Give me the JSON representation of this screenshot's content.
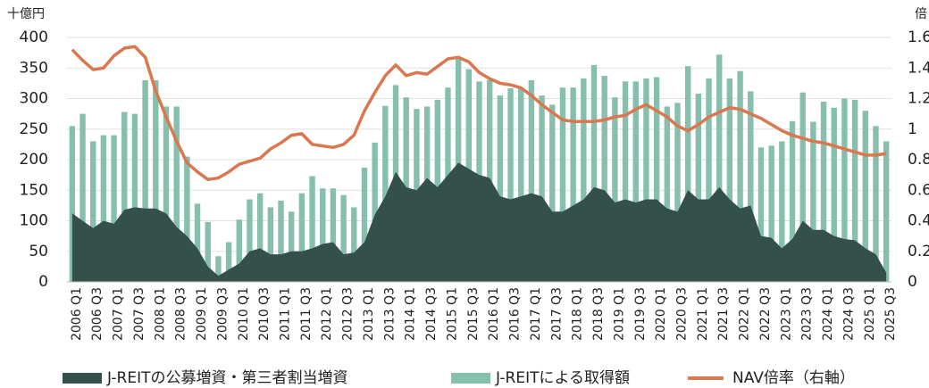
{
  "chart_data": {
    "type": "combo",
    "y_unit": "十億円",
    "y2_unit": "倍",
    "categories": [
      "2006 Q1",
      null,
      "2006 Q3",
      null,
      "2007 Q1",
      null,
      "2007 Q3",
      null,
      "2008 Q1",
      null,
      "2008 Q3",
      null,
      "2009 Q1",
      null,
      "2009 Q3",
      null,
      "2010 Q1",
      null,
      "2010 Q3",
      null,
      "2011 Q1",
      null,
      "2011 Q3",
      null,
      "2012 Q1",
      null,
      "2012 Q3",
      null,
      "2013 Q1",
      null,
      "2013 Q3",
      null,
      "2014 Q1",
      null,
      "2014 Q3",
      null,
      "2015 Q1",
      null,
      "2015 Q3",
      null,
      "2016 Q1",
      null,
      "2016 Q3",
      null,
      "2017 Q1",
      null,
      "2017 Q3",
      null,
      "2018 Q1",
      null,
      "2018 Q3",
      null,
      "2019 Q1",
      null,
      "2019 Q3",
      null,
      "2020 Q1",
      null,
      "2020 Q3",
      null,
      "2021 Q1",
      null,
      "2021 Q3",
      null,
      "2022 Q1",
      null,
      "2022 Q3",
      null,
      "2023 Q1",
      null,
      "2023 Q3",
      null,
      "2024 Q1",
      null,
      "2024 Q3",
      null,
      "2025 Q1",
      null,
      "2025 Q3"
    ],
    "series": [
      {
        "name": "J-REITによる取得額",
        "type": "bar",
        "color": "#86bfae",
        "values": [
          255,
          275,
          230,
          240,
          240,
          278,
          275,
          330,
          330,
          287,
          287,
          205,
          128,
          98,
          42,
          65,
          102,
          135,
          145,
          122,
          133,
          115,
          145,
          173,
          153,
          153,
          142,
          122,
          187,
          228,
          288,
          322,
          302,
          283,
          287,
          298,
          318,
          365,
          348,
          328,
          330,
          305,
          317,
          318,
          330,
          305,
          290,
          318,
          318,
          333,
          355,
          337,
          302,
          328,
          328,
          333,
          335,
          287,
          293,
          353,
          308,
          333,
          372,
          333,
          345,
          312,
          220,
          223,
          230,
          263,
          310,
          262,
          295,
          285,
          300,
          298,
          280,
          255,
          230
        ]
      },
      {
        "name": "J-REITの公募増資・第三者割当増資",
        "type": "area",
        "color": "#34504b",
        "values": [
          112,
          100,
          88,
          100,
          95,
          118,
          122,
          120,
          120,
          112,
          90,
          75,
          55,
          25,
          10,
          20,
          30,
          50,
          55,
          45,
          45,
          50,
          50,
          55,
          62,
          65,
          45,
          48,
          65,
          110,
          140,
          180,
          155,
          150,
          170,
          155,
          175,
          195,
          185,
          175,
          170,
          140,
          135,
          140,
          145,
          140,
          115,
          115,
          125,
          135,
          155,
          150,
          130,
          135,
          130,
          135,
          135,
          120,
          115,
          150,
          135,
          135,
          155,
          135,
          120,
          125,
          75,
          72,
          55,
          70,
          100,
          85,
          85,
          75,
          70,
          68,
          55,
          45,
          15
        ]
      },
      {
        "name": "NAV倍率（右軸）",
        "type": "line",
        "axis": "y2",
        "color": "#d9774f",
        "values": [
          1.52,
          1.45,
          1.39,
          1.4,
          1.48,
          1.53,
          1.54,
          1.47,
          1.25,
          1.08,
          0.92,
          0.78,
          0.72,
          0.67,
          0.68,
          0.72,
          0.77,
          0.79,
          0.81,
          0.87,
          0.91,
          0.96,
          0.97,
          0.9,
          0.89,
          0.88,
          0.9,
          0.96,
          1.12,
          1.24,
          1.35,
          1.42,
          1.35,
          1.37,
          1.36,
          1.41,
          1.46,
          1.47,
          1.44,
          1.37,
          1.33,
          1.3,
          1.29,
          1.27,
          1.22,
          1.16,
          1.11,
          1.06,
          1.05,
          1.05,
          1.05,
          1.06,
          1.08,
          1.09,
          1.13,
          1.16,
          1.12,
          1.08,
          1.02,
          0.99,
          1.03,
          1.08,
          1.11,
          1.14,
          1.13,
          1.1,
          1.07,
          1.03,
          0.99,
          0.96,
          0.94,
          0.92,
          0.91,
          0.89,
          0.87,
          0.85,
          0.83,
          0.83,
          0.84
        ]
      }
    ],
    "ylim": [
      0,
      400
    ],
    "yticks": [
      0,
      50,
      100,
      150,
      200,
      250,
      300,
      350,
      400
    ],
    "y2lim": [
      0,
      1.6
    ],
    "y2ticks": [
      0,
      0.2,
      0.4,
      0.6,
      0.8,
      1,
      1.2,
      1.4,
      1.6
    ],
    "grid": true,
    "legend": "bottom"
  }
}
